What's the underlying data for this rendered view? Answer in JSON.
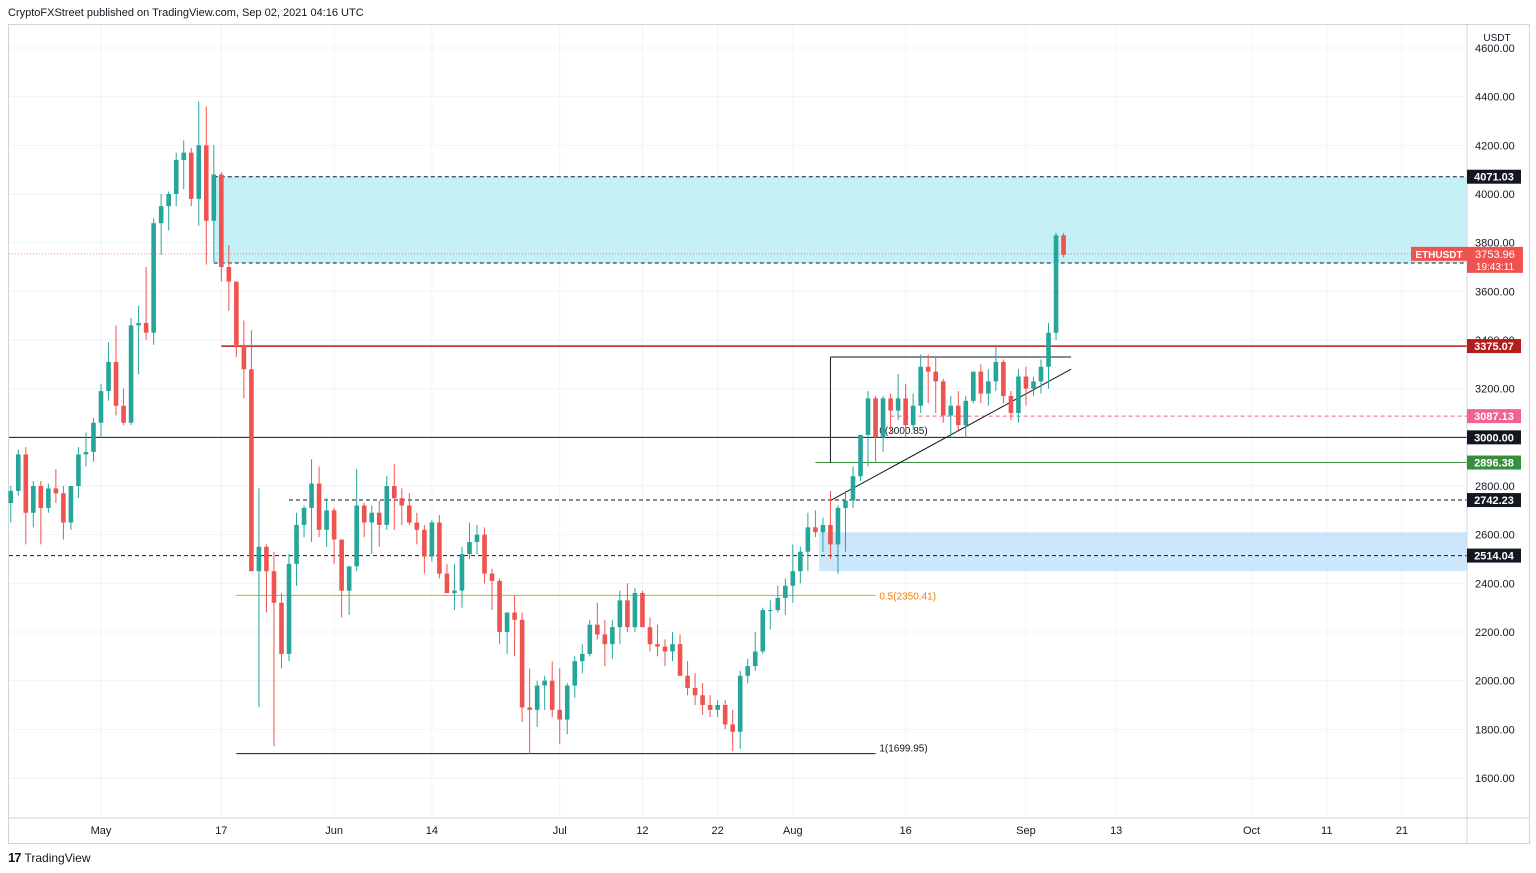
{
  "header": {
    "text": "CryptoFXStreet published on TradingView.com, Sep 02, 2021 04:16 UTC"
  },
  "footer": {
    "brand": "TradingView"
  },
  "chart_data": {
    "type": "candlestick",
    "symbol": "ETHUSDT",
    "currency": "USDT",
    "ylim": [
      1560,
      4690
    ],
    "y_ticks": [
      1600,
      1800,
      2000,
      2200,
      2400,
      2600,
      2800,
      3000,
      3200,
      3400,
      3600,
      3800,
      4000,
      4200,
      4400,
      4600
    ],
    "y_tick_labels": [
      "1600.00",
      "1800.00",
      "2000.00",
      "2200.00",
      "2400.00",
      "2600.00",
      "2800.00",
      "3000.00",
      "3200.00",
      "3400.00",
      "3600.00",
      "3800.00",
      "4000.00",
      "4200.00",
      "4400.00",
      "4600.00"
    ],
    "x_tick_labels": [
      {
        "label": "May",
        "day": 0
      },
      {
        "label": "17",
        "day": 16
      },
      {
        "label": "Jun",
        "day": 31
      },
      {
        "label": "14",
        "day": 44
      },
      {
        "label": "Jul",
        "day": 61
      },
      {
        "label": "12",
        "day": 72
      },
      {
        "label": "22",
        "day": 82
      },
      {
        "label": "Aug",
        "day": 92
      },
      {
        "label": "16",
        "day": 107
      },
      {
        "label": "Sep",
        "day": 123
      },
      {
        "label": "13",
        "day": 135
      },
      {
        "label": "Oct",
        "day": 153
      },
      {
        "label": "11",
        "day": 163
      },
      {
        "label": "21",
        "day": 173
      }
    ],
    "day_offset_start": -12,
    "day_offset_end": 183,
    "candles": [
      [
        2730,
        2800,
        2650,
        2780
      ],
      [
        2780,
        2950,
        2760,
        2930
      ],
      [
        2930,
        2960,
        2560,
        2690
      ],
      [
        2690,
        2820,
        2630,
        2800
      ],
      [
        2800,
        2820,
        2560,
        2710
      ],
      [
        2710,
        2810,
        2690,
        2790
      ],
      [
        2790,
        2870,
        2730,
        2770
      ],
      [
        2770,
        2800,
        2580,
        2650
      ],
      [
        2650,
        2800,
        2620,
        2800
      ],
      [
        2800,
        2960,
        2750,
        2930
      ],
      [
        2930,
        3020,
        2880,
        2940
      ],
      [
        2940,
        3080,
        2900,
        3060
      ],
      [
        3060,
        3220,
        3000,
        3190
      ],
      [
        3190,
        3390,
        3150,
        3310
      ],
      [
        3310,
        3460,
        3090,
        3130
      ],
      [
        3130,
        3200,
        3050,
        3060
      ],
      [
        3060,
        3490,
        3050,
        3460
      ],
      [
        3460,
        3540,
        3260,
        3470
      ],
      [
        3470,
        3700,
        3400,
        3430
      ],
      [
        3430,
        3900,
        3380,
        3880
      ],
      [
        3880,
        4000,
        3750,
        3950
      ],
      [
        3950,
        4010,
        3850,
        4000
      ],
      [
        4000,
        4170,
        3950,
        4140
      ],
      [
        4140,
        4220,
        4020,
        4170
      ],
      [
        4170,
        4190,
        3950,
        3980
      ],
      [
        3980,
        4380,
        3870,
        4200
      ],
      [
        4200,
        4360,
        3710,
        3890
      ],
      [
        3890,
        4200,
        3720,
        4080
      ],
      [
        4080,
        4090,
        3640,
        3700
      ],
      [
        3700,
        3790,
        3520,
        3640
      ],
      [
        3640,
        3640,
        3330,
        3380
      ],
      [
        3380,
        3480,
        3160,
        3280
      ],
      [
        3280,
        3440,
        2470,
        2450
      ],
      [
        2450,
        2790,
        1890,
        2550
      ],
      [
        2550,
        2560,
        2280,
        2450
      ],
      [
        2450,
        2530,
        1730,
        2320
      ],
      [
        2320,
        2360,
        2050,
        2110
      ],
      [
        2110,
        2520,
        2080,
        2480
      ],
      [
        2480,
        2690,
        2390,
        2640
      ],
      [
        2640,
        2720,
        2590,
        2710
      ],
      [
        2710,
        2910,
        2570,
        2810
      ],
      [
        2810,
        2880,
        2590,
        2620
      ],
      [
        2620,
        2750,
        2550,
        2700
      ],
      [
        2700,
        2710,
        2480,
        2580
      ],
      [
        2580,
        2580,
        2260,
        2370
      ],
      [
        2370,
        2440,
        2270,
        2470
      ],
      [
        2470,
        2870,
        2450,
        2720
      ],
      [
        2720,
        2730,
        2590,
        2650
      ],
      [
        2650,
        2720,
        2520,
        2690
      ],
      [
        2690,
        2740,
        2550,
        2640
      ],
      [
        2640,
        2840,
        2620,
        2800
      ],
      [
        2800,
        2890,
        2620,
        2750
      ],
      [
        2750,
        2790,
        2640,
        2720
      ],
      [
        2720,
        2770,
        2640,
        2650
      ],
      [
        2650,
        2690,
        2560,
        2620
      ],
      [
        2620,
        2640,
        2440,
        2510
      ],
      [
        2510,
        2660,
        2490,
        2650
      ],
      [
        2650,
        2680,
        2420,
        2440
      ],
      [
        2440,
        2480,
        2360,
        2360
      ],
      [
        2360,
        2480,
        2290,
        2370
      ],
      [
        2370,
        2550,
        2300,
        2520
      ],
      [
        2520,
        2650,
        2500,
        2570
      ],
      [
        2570,
        2640,
        2520,
        2600
      ],
      [
        2600,
        2630,
        2400,
        2440
      ],
      [
        2440,
        2460,
        2290,
        2410
      ],
      [
        2410,
        2420,
        2150,
        2200
      ],
      [
        2200,
        2280,
        2110,
        2280
      ],
      [
        2280,
        2350,
        2100,
        2250
      ],
      [
        2250,
        2280,
        1830,
        1890
      ],
      [
        1890,
        2050,
        1700,
        1880
      ],
      [
        1880,
        2000,
        1810,
        1980
      ],
      [
        1980,
        2020,
        1880,
        2000
      ],
      [
        2000,
        2080,
        1850,
        1880
      ],
      [
        1880,
        2050,
        1740,
        1840
      ],
      [
        1840,
        1990,
        1780,
        1980
      ],
      [
        1980,
        2100,
        1930,
        2080
      ],
      [
        2080,
        2150,
        2030,
        2110
      ],
      [
        2110,
        2250,
        2100,
        2230
      ],
      [
        2230,
        2320,
        2170,
        2190
      ],
      [
        2190,
        2250,
        2060,
        2150
      ],
      [
        2150,
        2250,
        2090,
        2220
      ],
      [
        2220,
        2370,
        2150,
        2330
      ],
      [
        2330,
        2400,
        2200,
        2220
      ],
      [
        2220,
        2380,
        2200,
        2360
      ],
      [
        2360,
        2370,
        2230,
        2220
      ],
      [
        2220,
        2260,
        2120,
        2150
      ],
      [
        2150,
        2230,
        2100,
        2140
      ],
      [
        2140,
        2170,
        2060,
        2120
      ],
      [
        2120,
        2200,
        2080,
        2150
      ],
      [
        2150,
        2190,
        2030,
        2020
      ],
      [
        2020,
        2080,
        1940,
        1970
      ],
      [
        1970,
        2030,
        1900,
        1940
      ],
      [
        1940,
        1990,
        1860,
        1900
      ],
      [
        1900,
        1940,
        1850,
        1880
      ],
      [
        1880,
        1920,
        1850,
        1900
      ],
      [
        1900,
        1920,
        1800,
        1820
      ],
      [
        1820,
        1880,
        1710,
        1790
      ],
      [
        1790,
        2040,
        1720,
        2020
      ],
      [
        2020,
        2090,
        1990,
        2060
      ],
      [
        2060,
        2200,
        2040,
        2120
      ],
      [
        2120,
        2300,
        2110,
        2290
      ],
      [
        2290,
        2330,
        2210,
        2290
      ],
      [
        2290,
        2390,
        2280,
        2340
      ],
      [
        2340,
        2420,
        2270,
        2390
      ],
      [
        2390,
        2560,
        2320,
        2450
      ],
      [
        2450,
        2550,
        2400,
        2530
      ],
      [
        2530,
        2690,
        2450,
        2630
      ],
      [
        2630,
        2700,
        2590,
        2610
      ],
      [
        2610,
        2670,
        2530,
        2640
      ],
      [
        2640,
        2780,
        2500,
        2560
      ],
      [
        2560,
        2720,
        2440,
        2710
      ],
      [
        2710,
        2780,
        2530,
        2740
      ],
      [
        2740,
        2880,
        2710,
        2840
      ],
      [
        2840,
        3000,
        2820,
        3010
      ],
      [
        3010,
        3190,
        2880,
        3160
      ],
      [
        3160,
        3170,
        2900,
        3000
      ],
      [
        3000,
        3170,
        2940,
        3160
      ],
      [
        3160,
        3180,
        3020,
        3110
      ],
      [
        3110,
        3260,
        3070,
        3160
      ],
      [
        3160,
        3220,
        3000,
        3050
      ],
      [
        3050,
        3180,
        3030,
        3130
      ],
      [
        3130,
        3340,
        3100,
        3290
      ],
      [
        3290,
        3340,
        3140,
        3270
      ],
      [
        3270,
        3330,
        3100,
        3230
      ],
      [
        3230,
        3240,
        3060,
        3090
      ],
      [
        3090,
        3170,
        3000,
        3130
      ],
      [
        3130,
        3190,
        3030,
        3050
      ],
      [
        3050,
        3170,
        3000,
        3150
      ],
      [
        3150,
        3260,
        3140,
        3270
      ],
      [
        3270,
        3300,
        3140,
        3180
      ],
      [
        3180,
        3280,
        3130,
        3230
      ],
      [
        3230,
        3380,
        3190,
        3310
      ],
      [
        3310,
        3320,
        3140,
        3170
      ],
      [
        3170,
        3190,
        3070,
        3100
      ],
      [
        3100,
        3280,
        3060,
        3250
      ],
      [
        3250,
        3290,
        3130,
        3200
      ],
      [
        3200,
        3250,
        3170,
        3230
      ],
      [
        3230,
        3320,
        3180,
        3290
      ],
      [
        3290,
        3470,
        3200,
        3430
      ],
      [
        3430,
        3840,
        3400,
        3830
      ],
      [
        3830,
        3840,
        3740,
        3750
      ]
    ],
    "resistance_zone": {
      "low": 3716.35,
      "high": 4071.03,
      "color": "#b2ebf2"
    },
    "support_zone": {
      "low": 2450,
      "high": 2610,
      "color": "#bbdefb"
    },
    "levels": [
      {
        "value": 4071.03,
        "label": "4071.03",
        "style": "dashed",
        "color": "#131722"
      },
      {
        "value": 3716.35,
        "label": "3716.35",
        "style": "dashed",
        "color": "#131722"
      },
      {
        "value": 3375.07,
        "label": "3375.07",
        "style": "solid",
        "color": "#b71c1c"
      },
      {
        "value": 3087.13,
        "label": "3087.13",
        "style": "dashed",
        "color": "#f06292"
      },
      {
        "value": 3000.0,
        "label": "3000.00",
        "style": "solid",
        "color": "#131722"
      },
      {
        "value": 2896.38,
        "label": "2896.38",
        "style": "solid",
        "color": "#388e3c"
      },
      {
        "value": 2742.23,
        "label": "2742.23",
        "style": "dashed",
        "color": "#131722"
      },
      {
        "value": 2514.04,
        "label": "2514.04",
        "style": "dashed",
        "color": "#131722"
      }
    ],
    "price_tag": {
      "symbol": "ETHUSDT",
      "price": "3753.96",
      "countdown": "19:43:11",
      "value": 3753.96
    },
    "fib": [
      {
        "label": "0(3000.85)",
        "value": 3000.85
      },
      {
        "label": "0.5(2350.41)",
        "value": 2350.41
      },
      {
        "label": "1(1699.95)",
        "value": 1699.95
      }
    ],
    "colors": {
      "up": "#26a69a",
      "down": "#ef5350",
      "fib_mid": "#c9b300",
      "fib_text": "#f57c00"
    }
  }
}
